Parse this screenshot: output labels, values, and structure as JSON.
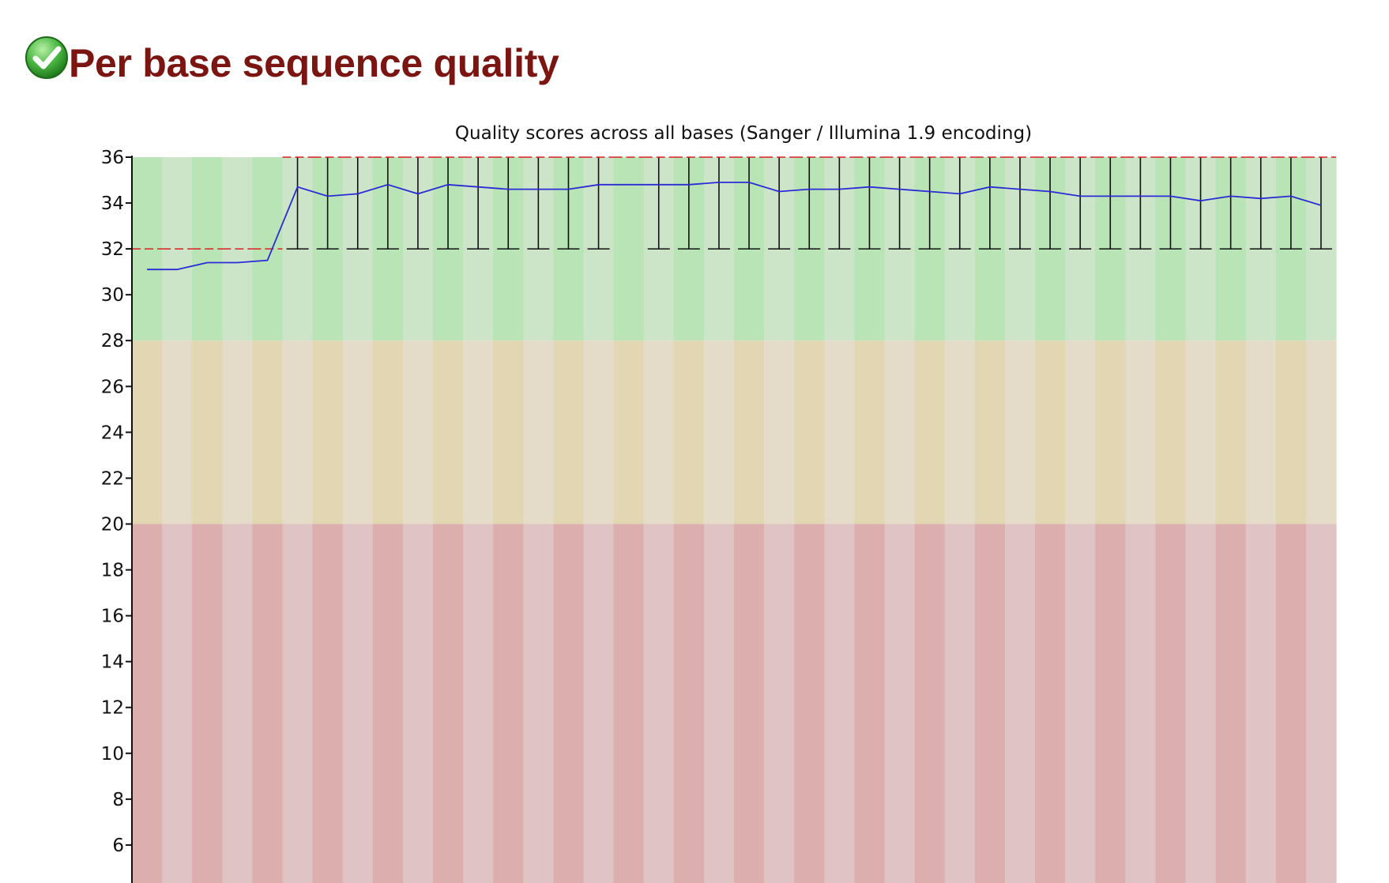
{
  "section": {
    "title": "Per base sequence quality",
    "status": "pass",
    "status_icon": "check-circle-icon"
  },
  "colors": {
    "title": "#7a1512",
    "icon_green": "#3fa53a",
    "mean_line": "#2b2bd6",
    "median_marker": "#d82020",
    "whisker": "#111111",
    "band_good": [
      "#b9e4b5",
      "#cce4c8"
    ],
    "band_warn": [
      "#e2d7b2",
      "#e4dcc8"
    ],
    "band_poor": [
      "#ddaeae",
      "#e0c3c5"
    ]
  },
  "chart_data": {
    "type": "line",
    "title": "Quality scores across all bases (Sanger / Illumina 1.9 encoding)",
    "xlabel": "",
    "ylabel": "",
    "ylim": [
      4,
      36
    ],
    "yticks": [
      "36",
      "34",
      "32",
      "30",
      "28",
      "26",
      "24",
      "22",
      "20",
      "18",
      "16",
      "14",
      "12",
      "10",
      "8",
      "6"
    ],
    "bands": [
      {
        "name": "good",
        "from": 28,
        "to": 36
      },
      {
        "name": "warning",
        "from": 20,
        "to": 28
      },
      {
        "name": "poor",
        "from": 4,
        "to": 20
      }
    ],
    "positions": 40,
    "mean": [
      31.1,
      31.1,
      31.4,
      31.4,
      31.5,
      34.7,
      34.3,
      34.4,
      34.8,
      34.4,
      34.8,
      34.7,
      34.6,
      34.6,
      34.6,
      34.8,
      34.8,
      34.8,
      34.8,
      34.9,
      34.9,
      34.5,
      34.6,
      34.6,
      34.7,
      34.6,
      34.5,
      34.4,
      34.7,
      34.6,
      34.5,
      34.3,
      34.3,
      34.3,
      34.3,
      34.1,
      34.3,
      34.2,
      34.3,
      33.9
    ],
    "median": [
      32,
      32,
      32,
      32,
      32,
      36,
      36,
      36,
      36,
      36,
      36,
      36,
      36,
      36,
      36,
      36,
      36,
      36,
      36,
      36,
      36,
      36,
      36,
      36,
      36,
      36,
      36,
      36,
      36,
      36,
      36,
      36,
      36,
      36,
      36,
      36,
      36,
      36,
      36,
      36
    ],
    "box_upper": [
      null,
      null,
      null,
      null,
      null,
      36,
      36,
      36,
      36,
      36,
      36,
      36,
      36,
      36,
      36,
      36,
      null,
      36,
      36,
      36,
      36,
      36,
      36,
      36,
      36,
      36,
      36,
      36,
      36,
      36,
      36,
      36,
      36,
      36,
      36,
      36,
      36,
      36,
      36,
      36
    ],
    "box_lower": [
      null,
      null,
      null,
      null,
      null,
      32,
      32,
      32,
      32,
      32,
      32,
      32,
      32,
      32,
      32,
      32,
      null,
      32,
      32,
      32,
      32,
      32,
      32,
      32,
      32,
      32,
      32,
      32,
      32,
      32,
      32,
      32,
      32,
      32,
      32,
      32,
      32,
      32,
      32,
      32
    ],
    "grid": false,
    "legend": "none"
  }
}
